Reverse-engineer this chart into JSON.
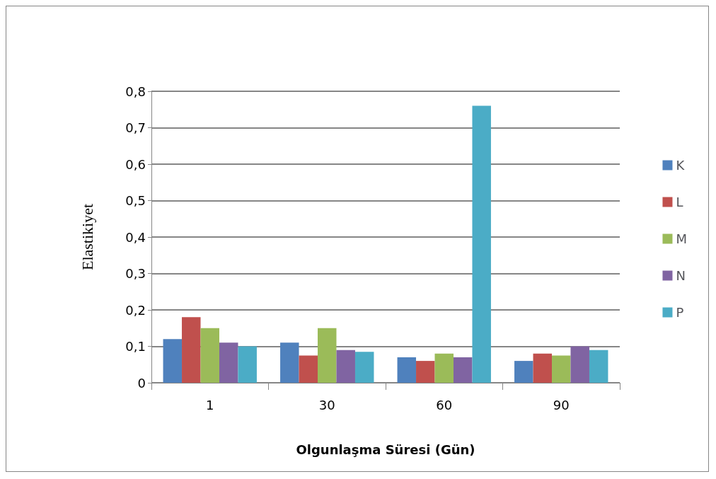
{
  "chart_data": {
    "type": "bar",
    "xlabel": "Olgunlaşma Süresi (Gün)",
    "ylabel": "Elastikiyet",
    "categories": [
      "1",
      "30",
      "60",
      "90"
    ],
    "series": [
      {
        "name": "K",
        "color": "#4f81bd",
        "values": [
          0.12,
          0.11,
          0.07,
          0.06
        ]
      },
      {
        "name": "L",
        "color": "#c0504d",
        "values": [
          0.18,
          0.075,
          0.06,
          0.08
        ]
      },
      {
        "name": "M",
        "color": "#9bbb59",
        "values": [
          0.15,
          0.15,
          0.08,
          0.075
        ]
      },
      {
        "name": "N",
        "color": "#8064a2",
        "values": [
          0.11,
          0.09,
          0.07,
          0.1
        ]
      },
      {
        "name": "P",
        "color": "#4bacc6",
        "values": [
          0.1,
          0.085,
          0.76,
          0.09
        ]
      }
    ],
    "ylim": [
      0,
      0.8
    ],
    "yticks": [
      0,
      {
        "value": 0.1,
        "label": "0,1"
      },
      {
        "value": 0.2,
        "label": "0,2"
      },
      {
        "value": 0.3,
        "label": "0,3"
      },
      {
        "value": 0.4,
        "label": "0,4"
      },
      {
        "value": 0.5,
        "label": "0,5"
      },
      {
        "value": 0.6,
        "label": "0,6"
      },
      {
        "value": 0.7,
        "label": "0,7"
      },
      {
        "value": 0.8,
        "label": "0,8"
      }
    ],
    "grid": "y",
    "legend": "right"
  }
}
